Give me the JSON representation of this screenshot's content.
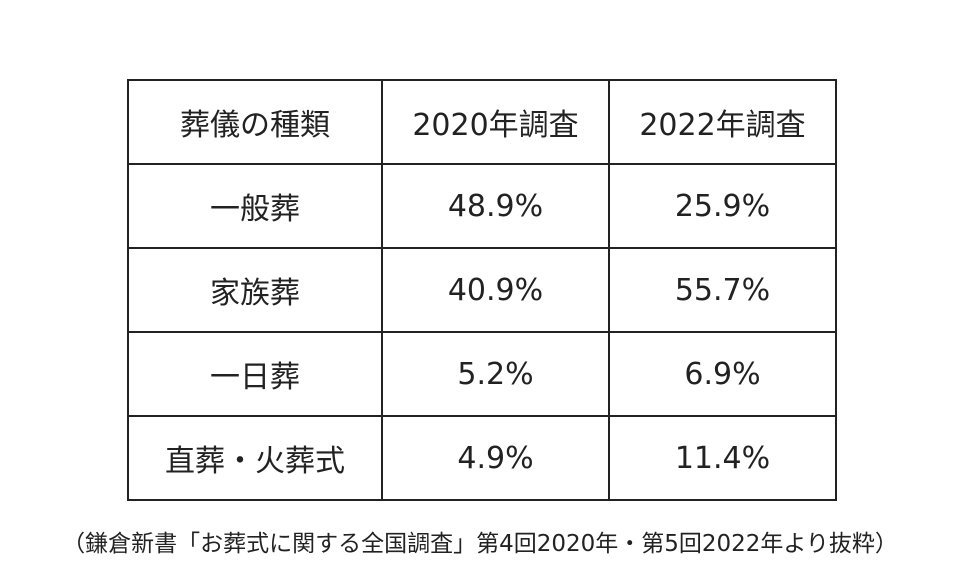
{
  "table": {
    "headers": [
      "葬儀の種類",
      "2020年調査",
      "2022年調査"
    ],
    "rows": [
      {
        "type": "一般葬",
        "y2020": "48.9%",
        "y2022": "25.9%"
      },
      {
        "type": "家族葬",
        "y2020": "40.9%",
        "y2022": "55.7%"
      },
      {
        "type": "一日葬",
        "y2020": "5.2%",
        "y2022": "6.9%"
      },
      {
        "type": "直葬・火葬式",
        "y2020": "4.9%",
        "y2022": "11.4%"
      }
    ]
  },
  "caption": "（鎌倉新書「お葬式に関する全国調査」第4回2020年・第5回2022年より抜粋）"
}
